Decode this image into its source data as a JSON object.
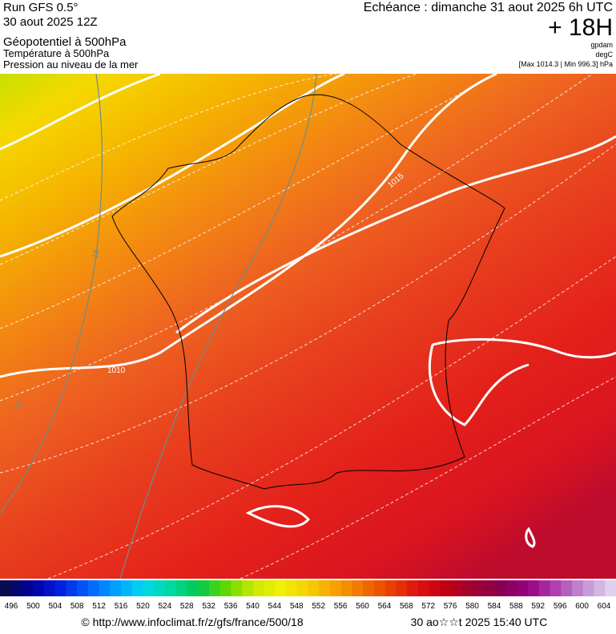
{
  "header": {
    "run": "Run GFS 0.5°",
    "run_date": "30 aout 2025 12Z",
    "param_1": "Géopotentiel à 500hPa",
    "param_2": "Température à 500hPa",
    "param_3": "Pression au niveau de la mer",
    "valid": "Echéance : dimanche 31 aout 2025 6h UTC",
    "lead": "+ 18H",
    "unit_1": "gpdam",
    "unit_2": "degC",
    "range": "[Max 1014.3 | Min 996.3] hPa"
  },
  "map": {
    "contour_labels": [
      "1010",
      "1015",
      "16",
      "16"
    ]
  },
  "colorbar": {
    "ticks": [
      496,
      500,
      504,
      508,
      512,
      516,
      520,
      524,
      528,
      532,
      536,
      540,
      544,
      548,
      552,
      556,
      560,
      564,
      568,
      572,
      576,
      580,
      584,
      588,
      592,
      596,
      600,
      604
    ]
  },
  "footer": {
    "url": "© http://www.infoclimat.fr/z/gfs/france/500/18",
    "timestamp": "30 ao☆☆t 2025 15:40 UTC"
  }
}
